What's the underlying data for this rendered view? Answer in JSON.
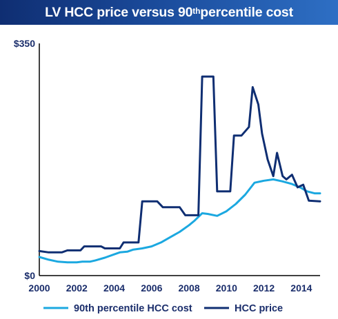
{
  "title": {
    "pre": "LV HCC price versus 90",
    "sup": "th",
    "post": " percentile cost"
  },
  "chart_data": {
    "type": "line",
    "title": "LV HCC price versus 90th percentile cost",
    "xlim": [
      2000,
      2015
    ],
    "ylim": [
      0,
      350
    ],
    "x_ticks": [
      2000,
      2002,
      2004,
      2006,
      2008,
      2010,
      2012,
      2014
    ],
    "y_tick_labels": [
      {
        "value": 0,
        "label": "$0"
      },
      {
        "value": 350,
        "label": "$350"
      }
    ],
    "grid": false,
    "legend": "bottom",
    "series": [
      {
        "name": "90th percentile HCC cost",
        "color": "#1ba8e0",
        "points": [
          [
            2000,
            28
          ],
          [
            2000.5,
            24
          ],
          [
            2001,
            21
          ],
          [
            2001.5,
            20
          ],
          [
            2002,
            20
          ],
          [
            2002.3,
            21
          ],
          [
            2002.7,
            21
          ],
          [
            2003,
            23
          ],
          [
            2003.5,
            27
          ],
          [
            2004,
            32
          ],
          [
            2004.3,
            35
          ],
          [
            2004.7,
            36
          ],
          [
            2005,
            39
          ],
          [
            2005.5,
            41
          ],
          [
            2006,
            44
          ],
          [
            2006.5,
            50
          ],
          [
            2007,
            58
          ],
          [
            2007.5,
            66
          ],
          [
            2008,
            76
          ],
          [
            2008.3,
            83
          ],
          [
            2008.7,
            94
          ],
          [
            2009,
            93
          ],
          [
            2009.5,
            90
          ],
          [
            2010,
            97
          ],
          [
            2010.5,
            108
          ],
          [
            2011,
            122
          ],
          [
            2011.5,
            140
          ],
          [
            2012,
            143
          ],
          [
            2012.5,
            145
          ],
          [
            2013,
            142
          ],
          [
            2013.5,
            138
          ],
          [
            2014,
            132
          ],
          [
            2014.3,
            127
          ],
          [
            2014.7,
            124
          ],
          [
            2015,
            124
          ]
        ]
      },
      {
        "name": "HCC price",
        "color": "#0f2e72",
        "points": [
          [
            2000,
            37
          ],
          [
            2000.5,
            35
          ],
          [
            2001.2,
            35
          ],
          [
            2001.5,
            38
          ],
          [
            2002.2,
            38
          ],
          [
            2002.4,
            44
          ],
          [
            2003.3,
            44
          ],
          [
            2003.5,
            41
          ],
          [
            2004.3,
            41
          ],
          [
            2004.5,
            50
          ],
          [
            2005.3,
            50
          ],
          [
            2005.5,
            112
          ],
          [
            2006.3,
            112
          ],
          [
            2006.6,
            103
          ],
          [
            2007.5,
            103
          ],
          [
            2007.8,
            91
          ],
          [
            2008.5,
            91
          ],
          [
            2008.7,
            300
          ],
          [
            2009.3,
            300
          ],
          [
            2009.5,
            127
          ],
          [
            2010.2,
            127
          ],
          [
            2010.4,
            211
          ],
          [
            2010.8,
            211
          ],
          [
            2011.2,
            224
          ],
          [
            2011.4,
            284
          ],
          [
            2011.7,
            258
          ],
          [
            2011.9,
            214
          ],
          [
            2012.2,
            175
          ],
          [
            2012.5,
            150
          ],
          [
            2012.7,
            185
          ],
          [
            2013,
            150
          ],
          [
            2013.2,
            145
          ],
          [
            2013.5,
            152
          ],
          [
            2013.8,
            133
          ],
          [
            2014.1,
            137
          ],
          [
            2014.4,
            113
          ],
          [
            2015,
            112
          ]
        ]
      }
    ]
  }
}
